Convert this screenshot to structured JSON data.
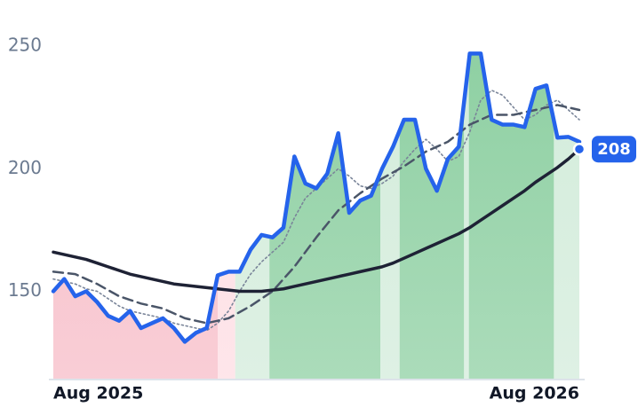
{
  "chart_data": {
    "type": "line",
    "x": [
      0,
      0.25,
      0.5,
      0.75,
      1,
      1.25,
      1.5,
      1.75,
      2,
      2.25,
      2.5,
      2.75,
      3,
      3.25,
      3.5,
      3.75,
      4,
      4.25,
      4.5,
      4.75,
      5,
      5.25,
      5.5,
      5.75,
      6,
      6.25,
      6.5,
      6.75,
      7,
      7.25,
      7.5,
      7.75,
      8,
      8.25,
      8.5,
      8.75,
      9,
      9.25,
      9.5,
      9.75,
      10,
      10.25,
      10.5,
      10.75,
      11,
      11.25,
      11.5,
      11.75,
      12
    ],
    "xlim": [
      0,
      12
    ],
    "xticks": [
      {
        "value": 0,
        "label": "Aug 2025"
      },
      {
        "value": 12,
        "label": "Aug 2026"
      }
    ],
    "ylim": [
      114,
      258
    ],
    "yticks": [
      150,
      200,
      250
    ],
    "series": [
      {
        "color": "#2563eb",
        "style": "solid",
        "values": [
          150,
          155,
          148,
          150,
          145.6,
          140,
          138,
          142,
          135,
          137,
          139,
          135,
          129.4,
          133,
          135,
          156.5,
          158,
          158,
          167,
          173,
          172,
          176,
          205,
          194,
          192,
          198,
          214.5,
          182,
          187,
          189,
          200,
          209,
          220,
          220,
          200,
          191,
          204,
          209,
          247,
          247,
          220,
          218,
          218,
          217,
          232.6,
          234,
          212.7,
          213,
          211
        ]
      },
      {
        "color": "#7a8599",
        "style": "dotted",
        "values": [
          155,
          154,
          153,
          151,
          150,
          147,
          144,
          142,
          141,
          140,
          139,
          137,
          136,
          135,
          134,
          137,
          142,
          150,
          157,
          162,
          166,
          170,
          180,
          188,
          192,
          196,
          200,
          197,
          193,
          192,
          194,
          197,
          203,
          208,
          212,
          208,
          203,
          205,
          215,
          228,
          232,
          230,
          225,
          220,
          222,
          226,
          228,
          224,
          220
        ]
      },
      {
        "color": "#4a5568",
        "style": "dashed",
        "values": [
          158,
          157.5,
          157,
          155,
          153,
          150.5,
          148,
          146.5,
          145,
          144,
          143,
          141,
          139,
          138,
          137,
          138,
          139,
          141.5,
          144,
          147,
          150,
          155,
          160,
          166,
          172,
          177.5,
          183,
          186.5,
          190,
          193,
          196,
          198.5,
          201,
          204,
          207,
          209,
          211,
          214.5,
          218,
          220,
          222,
          222,
          222,
          223,
          224,
          225,
          226,
          225,
          224
        ]
      },
      {
        "color": "#1e2235",
        "style": "solid",
        "values": [
          166,
          165,
          164,
          163,
          161.5,
          160,
          158.5,
          157,
          156,
          155,
          154,
          153,
          152.5,
          152,
          151.5,
          151,
          150.5,
          150,
          150,
          150,
          150.5,
          151,
          152,
          153,
          154,
          155,
          156,
          157,
          158,
          159,
          160,
          161.5,
          163.5,
          165.5,
          167.5,
          169.5,
          171.5,
          173.5,
          176,
          179,
          182,
          185,
          188,
          191,
          194.5,
          197.5,
          200.5,
          204,
          208
        ]
      }
    ],
    "regions": [
      {
        "start": 0,
        "end": 3.75,
        "color": "#f7bdc8"
      },
      {
        "start": 3.75,
        "end": 4.15,
        "color": "#fddde3"
      },
      {
        "start": 4.15,
        "end": 4.93,
        "color": "#d3ecdb"
      },
      {
        "start": 4.93,
        "end": 7.46,
        "color": "#8fd0a3"
      },
      {
        "start": 7.46,
        "end": 7.9,
        "color": "#d3ecdb"
      },
      {
        "start": 7.9,
        "end": 9.37,
        "color": "#8fd0a3"
      },
      {
        "start": 9.37,
        "end": 9.48,
        "color": "#d3ecdb"
      },
      {
        "start": 9.48,
        "end": 11.42,
        "color": "#8fd0a3"
      },
      {
        "start": 11.42,
        "end": 12,
        "color": "#d3ecdb"
      }
    ]
  }
}
